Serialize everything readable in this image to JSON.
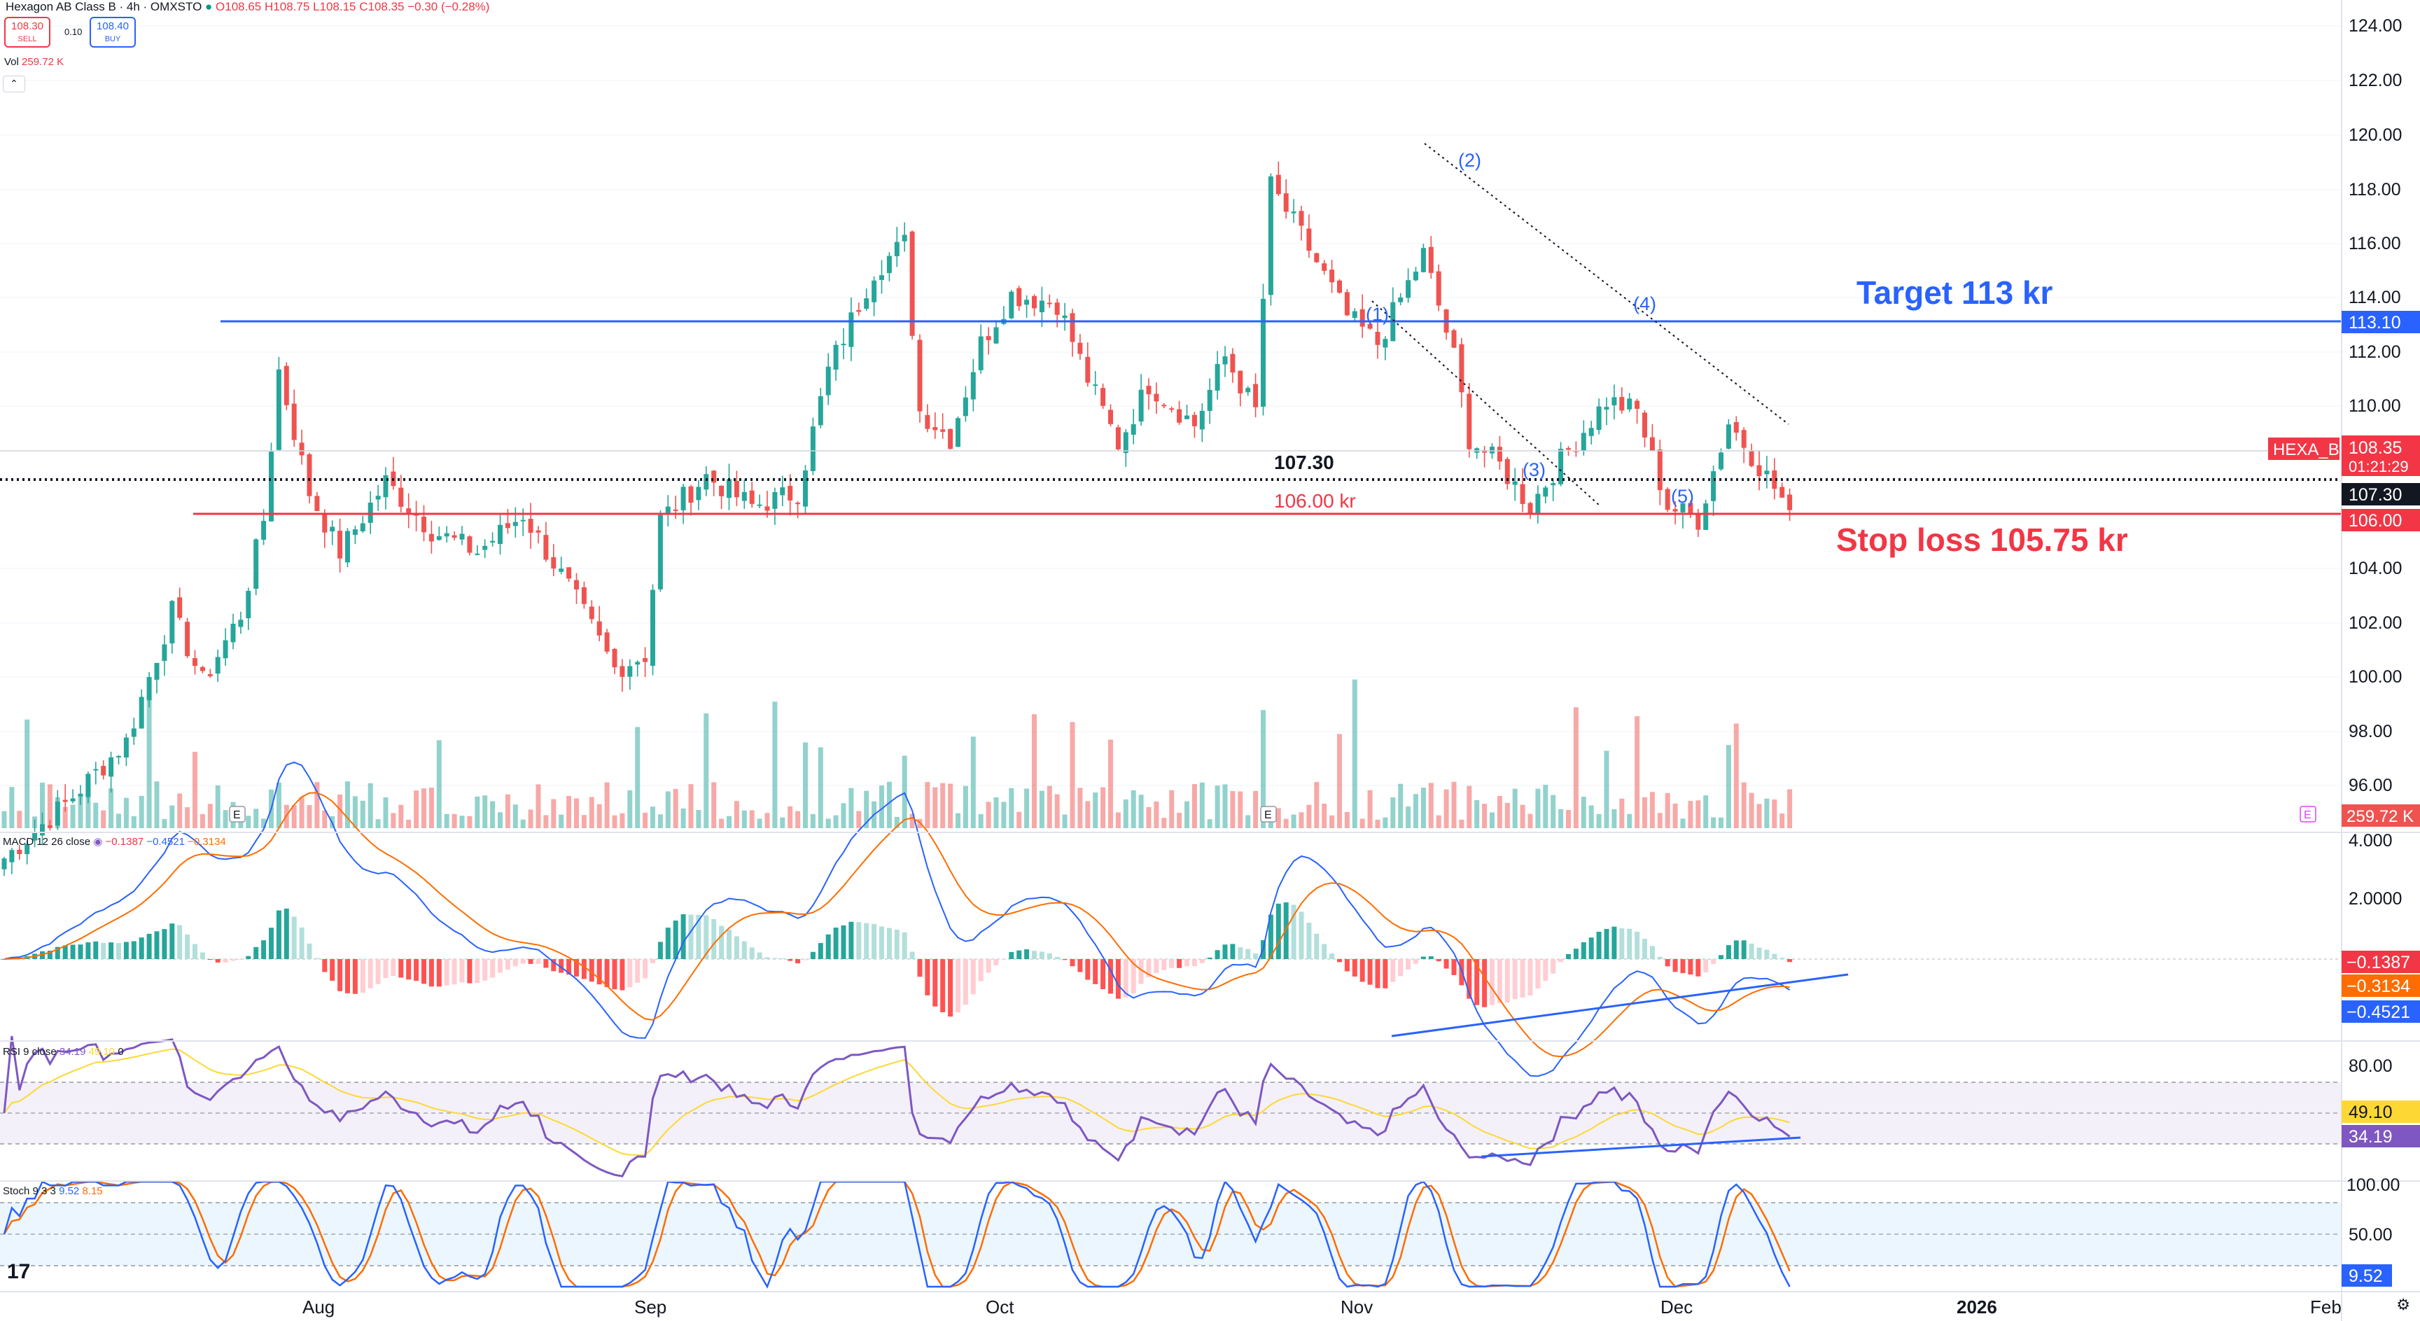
{
  "header": {
    "title": "Hexagon AB Class B · 4h · OMXSTO",
    "open": "O108.65",
    "high": "H108.75",
    "low": "L108.15",
    "close": "C108.35",
    "change": "−0.30 (−0.28%)",
    "sell_price": "108.30",
    "sell_label": "SELL",
    "spread": "0.10",
    "buy_price": "108.40",
    "buy_label": "BUY",
    "vol_label": "Vol",
    "vol_value": "259.72 K",
    "collapse_icon": "chevron-up-icon"
  },
  "colors": {
    "up": "#26a69a",
    "down": "#ef5350",
    "target": "#2962ff",
    "stop": "#f23645",
    "macd": "#2962ff",
    "signal": "#ff6d00",
    "rsi": "#7e57c2",
    "rsi_ma": "#fdd835",
    "stoch_k": "#2962ff",
    "stoch_d": "#ff6d00"
  },
  "annotations": {
    "target_text": "Target 113 kr",
    "stop_text": "Stop loss 105.75 kr",
    "level_107": "107.30",
    "level_106": "106.00 kr",
    "wave_labels": [
      "(1)",
      "(2)",
      "(3)",
      "(4)",
      "(5)"
    ],
    "earnings_marker": "E"
  },
  "price_axis": {
    "ticks": [
      "124.00",
      "122.00",
      "120.00",
      "118.00",
      "116.00",
      "114.00",
      "112.00",
      "110.00",
      "104.00",
      "102.00",
      "100.00",
      "98.00",
      "96.00"
    ],
    "badges": {
      "target": "113.10",
      "symbol": "HEXA_B",
      "last": "108.35",
      "countdown": "01:21:29",
      "dotted": "107.30",
      "stop": "106.00",
      "volume": "259.72 K"
    }
  },
  "macd": {
    "label": "MACD 12 26 close",
    "v1": "−0.1387",
    "v2": "−0.4521",
    "v3": "−0.3134",
    "ticks": [
      "4.000",
      "2.0000"
    ],
    "badges": [
      "−0.1387",
      "−0.3134",
      "−0.4521"
    ]
  },
  "rsi": {
    "label": "RSI 9 close",
    "value": "34.19",
    "ma": "49.10",
    "extra": "0",
    "ticks": [
      "80.00"
    ],
    "badges": [
      "49.10",
      "34.19"
    ]
  },
  "stoch": {
    "label": "Stoch 9 3 3",
    "k": "9.52",
    "d": "8.15",
    "ticks": [
      "100.00",
      "50.00"
    ],
    "badge": "9.52"
  },
  "time_axis": [
    "Aug",
    "Sep",
    "Oct",
    "Nov",
    "Dec",
    "2026",
    "Feb"
  ],
  "chart_data": {
    "type": "candlestick",
    "symbol": "HEXA_B",
    "timeframe": "4h",
    "ylim": [
      94.5,
      124.5
    ],
    "lines": {
      "target": 113.1,
      "last": 108.35,
      "dotted": 107.3,
      "stop": 106.0
    },
    "anchors": [
      {
        "t": 0,
        "p": 95.5
      },
      {
        "t": 8,
        "p": 97.5
      },
      {
        "t": 16,
        "p": 99.8
      },
      {
        "t": 22,
        "p": 104.6
      },
      {
        "t": 26,
        "p": 102.0
      },
      {
        "t": 31,
        "p": 104.5
      },
      {
        "t": 34,
        "p": 108.0
      },
      {
        "t": 36,
        "p": 113.5
      },
      {
        "t": 40,
        "p": 109.0
      },
      {
        "t": 44,
        "p": 106.8
      },
      {
        "t": 50,
        "p": 109.4
      },
      {
        "t": 56,
        "p": 107.6
      },
      {
        "t": 62,
        "p": 106.8
      },
      {
        "t": 68,
        "p": 108.2
      },
      {
        "t": 74,
        "p": 105.5
      },
      {
        "t": 80,
        "p": 102.5
      },
      {
        "t": 84,
        "p": 103.0
      },
      {
        "t": 86,
        "p": 108.0
      },
      {
        "t": 92,
        "p": 109.6
      },
      {
        "t": 98,
        "p": 108.5
      },
      {
        "t": 104,
        "p": 109.0
      },
      {
        "t": 108,
        "p": 113.5
      },
      {
        "t": 114,
        "p": 117.2
      },
      {
        "t": 118,
        "p": 118.2
      },
      {
        "t": 120,
        "p": 112.0
      },
      {
        "t": 124,
        "p": 111.0
      },
      {
        "t": 128,
        "p": 114.5
      },
      {
        "t": 132,
        "p": 116.3
      },
      {
        "t": 138,
        "p": 116.0
      },
      {
        "t": 142,
        "p": 113.2
      },
      {
        "t": 146,
        "p": 110.8
      },
      {
        "t": 150,
        "p": 113.0
      },
      {
        "t": 156,
        "p": 111.5
      },
      {
        "t": 160,
        "p": 114.0
      },
      {
        "t": 164,
        "p": 112.0
      },
      {
        "t": 166,
        "p": 120.3
      },
      {
        "t": 170,
        "p": 118.5
      },
      {
        "t": 176,
        "p": 115.5
      },
      {
        "t": 180,
        "p": 114.5
      },
      {
        "t": 186,
        "p": 117.8
      },
      {
        "t": 190,
        "p": 114.0
      },
      {
        "t": 192,
        "p": 111.0
      },
      {
        "t": 196,
        "p": 110.0
      },
      {
        "t": 200,
        "p": 108.5
      },
      {
        "t": 204,
        "p": 110.2
      },
      {
        "t": 210,
        "p": 112.4
      },
      {
        "t": 214,
        "p": 112.0
      },
      {
        "t": 218,
        "p": 108.5
      },
      {
        "t": 222,
        "p": 108.0
      },
      {
        "t": 226,
        "p": 111.6
      },
      {
        "t": 230,
        "p": 110.0
      },
      {
        "t": 234,
        "p": 108.35
      }
    ]
  }
}
